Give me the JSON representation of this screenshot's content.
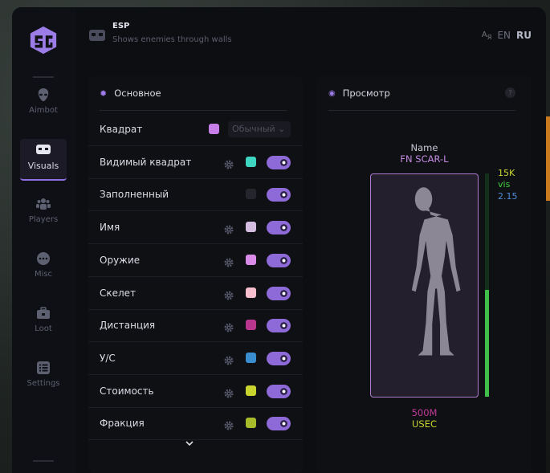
{
  "header": {
    "title": "ESP",
    "subtitle": "Shows enemies through walls",
    "icon": "vr-goggles-icon"
  },
  "language": {
    "icon": "translate-icon",
    "options": [
      "EN",
      "RU"
    ],
    "selected": "RU"
  },
  "sidebar": {
    "items": [
      {
        "label": "Aimbot",
        "icon": "alien-icon"
      },
      {
        "label": "Visuals",
        "icon": "vr-goggles-icon",
        "active": true
      },
      {
        "label": "Players",
        "icon": "users-icon"
      },
      {
        "label": "Misc",
        "icon": "dots-icon"
      },
      {
        "label": "Loot",
        "icon": "briefcase-icon"
      },
      {
        "label": "Settings",
        "icon": "list-icon"
      }
    ]
  },
  "main": {
    "title": "Основное",
    "rows": [
      {
        "label": "Квадрат",
        "color": "#c77ee8",
        "select": "Обычный"
      },
      {
        "label": "Видимый квадрат",
        "color": "#3ed6c0",
        "enabled": true
      },
      {
        "label": "Заполненный",
        "color": "#25262d",
        "enabled": true
      },
      {
        "label": "Имя",
        "color": "#d4bde0",
        "enabled": true
      },
      {
        "label": "Оружие",
        "color": "#d98be8",
        "enabled": true
      },
      {
        "label": "Скелет",
        "color": "#f6bfce",
        "enabled": true
      },
      {
        "label": "Дистанция",
        "color": "#b8368e",
        "enabled": true
      },
      {
        "label": "У/С",
        "color": "#3a8ed0",
        "enabled": true
      },
      {
        "label": "Стоимость",
        "color": "#c9d52e",
        "enabled": true
      },
      {
        "label": "Фракция",
        "color": "#a8bb2a",
        "enabled": true
      }
    ]
  },
  "preview": {
    "title": "Просмотр",
    "help": "?",
    "name": "Name",
    "weapon": "FN SCAR-L",
    "value": "15K",
    "visibility": "vis",
    "kd": "2.15",
    "distance": "500M",
    "faction": "USEC",
    "health_fraction": 0.48
  }
}
